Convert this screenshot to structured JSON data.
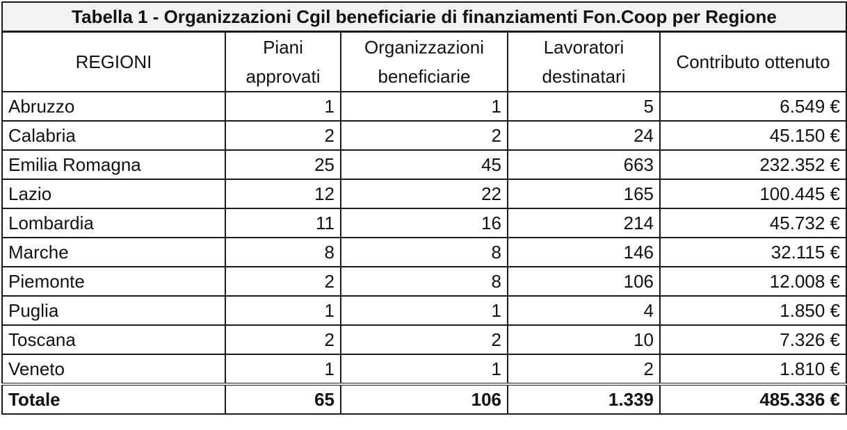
{
  "table": {
    "title": "Tabella 1 - Organizzazioni Cgil beneficiarie di finanziamenti Fon.Coop per Regione",
    "headers": {
      "region": "REGIONI",
      "piani": "Piani approvati",
      "org": "Organizzazioni beneficiarie",
      "lav": "Lavoratori destinatari",
      "contr": "Contributo ottenuto"
    },
    "rows": [
      {
        "region": "Abruzzo",
        "piani": "1",
        "org": "1",
        "lav": "5",
        "contr": "6.549 €"
      },
      {
        "region": "Calabria",
        "piani": "2",
        "org": "2",
        "lav": "24",
        "contr": "45.150 €"
      },
      {
        "region": "Emilia Romagna",
        "piani": "25",
        "org": "45",
        "lav": "663",
        "contr": "232.352 €"
      },
      {
        "region": "Lazio",
        "piani": "12",
        "org": "22",
        "lav": "165",
        "contr": "100.445 €"
      },
      {
        "region": "Lombardia",
        "piani": "11",
        "org": "16",
        "lav": "214",
        "contr": "45.732 €"
      },
      {
        "region": "Marche",
        "piani": "8",
        "org": "8",
        "lav": "146",
        "contr": "32.115 €"
      },
      {
        "region": "Piemonte",
        "piani": "2",
        "org": "8",
        "lav": "106",
        "contr": "12.008 €"
      },
      {
        "region": "Puglia",
        "piani": "1",
        "org": "1",
        "lav": "4",
        "contr": "1.850 €"
      },
      {
        "region": "Toscana",
        "piani": "2",
        "org": "2",
        "lav": "10",
        "contr": "7.326 €"
      },
      {
        "region": "Veneto",
        "piani": "1",
        "org": "1",
        "lav": "2",
        "contr": "1.810 €"
      }
    ],
    "total": {
      "region": "Totale",
      "piani": "65",
      "org": "106",
      "lav": "1.339",
      "contr": "485.336 €"
    }
  }
}
